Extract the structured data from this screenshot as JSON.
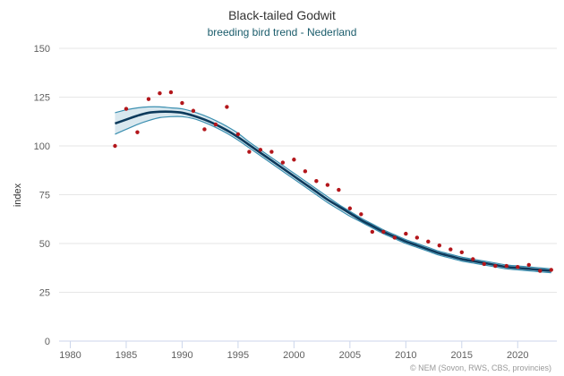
{
  "chart_data": {
    "type": "line",
    "title": "Black-tailed Godwit",
    "subtitle": "breeding bird trend - Nederland",
    "ylabel": "index",
    "xlabel": "",
    "xlim": [
      1979,
      2023.5
    ],
    "ylim": [
      0,
      150
    ],
    "xticks": [
      1980,
      1985,
      1990,
      1995,
      2000,
      2005,
      2010,
      2015,
      2020
    ],
    "yticks": [
      0,
      25,
      50,
      75,
      100,
      125,
      150
    ],
    "grid": true,
    "credit": "© NEM (Sovon, RWS, CBS, provincies)",
    "colors": {
      "trend": "#0c3a5c",
      "bounds": "#3b8fb0",
      "band": "#2f7fa6",
      "points": "#b3161b"
    },
    "series": [
      {
        "role": "observed-index",
        "x": [
          1984,
          1985,
          1986,
          1987,
          1988,
          1989,
          1990,
          1991,
          1992,
          1993,
          1994,
          1995,
          1996,
          1997,
          1998,
          1999,
          2000,
          2001,
          2002,
          2003,
          2004,
          2005,
          2006,
          2007,
          2008,
          2009,
          2010,
          2011,
          2012,
          2013,
          2014,
          2015,
          2016,
          2017,
          2018,
          2019,
          2020,
          2021,
          2022,
          2023
        ],
        "values": [
          100,
          119,
          107,
          124,
          127,
          127.5,
          122,
          118,
          108.5,
          111,
          120,
          106,
          97,
          98,
          97,
          91.5,
          93,
          87,
          82,
          80,
          77.5,
          68,
          65,
          56,
          56,
          53,
          55,
          53,
          51,
          49,
          47,
          45.5,
          42,
          39.5,
          38.5,
          38.5,
          38,
          39,
          36,
          36.5
        ]
      },
      {
        "role": "trend",
        "x": [
          1984,
          1985,
          1986,
          1987,
          1988,
          1989,
          1990,
          1991,
          1992,
          1993,
          1994,
          1995,
          1996,
          1997,
          1998,
          1999,
          2000,
          2001,
          2002,
          2003,
          2004,
          2005,
          2006,
          2007,
          2008,
          2009,
          2010,
          2011,
          2012,
          2013,
          2014,
          2015,
          2016,
          2017,
          2018,
          2019,
          2020,
          2021,
          2022,
          2023
        ],
        "values": [
          111.5,
          113.5,
          115.5,
          117,
          117.5,
          117.5,
          117,
          115.5,
          113.5,
          111,
          108,
          104.5,
          100.5,
          96.5,
          92.5,
          88.5,
          84.5,
          80.5,
          76.5,
          72.5,
          69,
          65.5,
          62,
          59,
          56,
          53.5,
          51,
          49,
          47,
          45,
          43.5,
          42,
          41,
          40,
          39,
          38,
          37.5,
          37,
          36.5,
          36
        ]
      },
      {
        "role": "upper-bound",
        "x": [
          1984,
          1985,
          1986,
          1987,
          1988,
          1989,
          1990,
          1991,
          1992,
          1993,
          1994,
          1995,
          1996,
          1997,
          1998,
          1999,
          2000,
          2001,
          2002,
          2003,
          2004,
          2005,
          2006,
          2007,
          2008,
          2009,
          2010,
          2011,
          2012,
          2013,
          2014,
          2015,
          2016,
          2017,
          2018,
          2019,
          2020,
          2021,
          2022,
          2023
        ],
        "values": [
          117,
          118.5,
          119.5,
          120,
          120,
          119.5,
          119,
          117.5,
          115.5,
          113,
          110,
          106.5,
          102,
          98,
          94,
          90,
          86,
          82,
          78,
          74,
          70,
          66.5,
          63,
          60,
          57,
          54.5,
          52,
          50,
          48,
          46,
          44.5,
          43,
          42,
          41,
          40,
          39,
          38.5,
          38,
          37.5,
          37
        ]
      },
      {
        "role": "lower-bound",
        "x": [
          1984,
          1985,
          1986,
          1987,
          1988,
          1989,
          1990,
          1991,
          1992,
          1993,
          1994,
          1995,
          1996,
          1997,
          1998,
          1999,
          2000,
          2001,
          2002,
          2003,
          2004,
          2005,
          2006,
          2007,
          2008,
          2009,
          2010,
          2011,
          2012,
          2013,
          2014,
          2015,
          2016,
          2017,
          2018,
          2019,
          2020,
          2021,
          2022,
          2023
        ],
        "values": [
          106,
          108.5,
          111,
          113,
          114.5,
          115,
          115,
          114,
          112,
          109.5,
          106.5,
          103,
          99,
          95,
          91,
          87,
          83,
          79,
          75,
          71,
          67.5,
          64,
          61,
          58,
          55,
          52.5,
          50,
          48,
          46,
          44,
          42.5,
          41,
          40,
          39,
          38,
          37,
          36.5,
          36,
          35.5,
          35
        ]
      }
    ]
  }
}
